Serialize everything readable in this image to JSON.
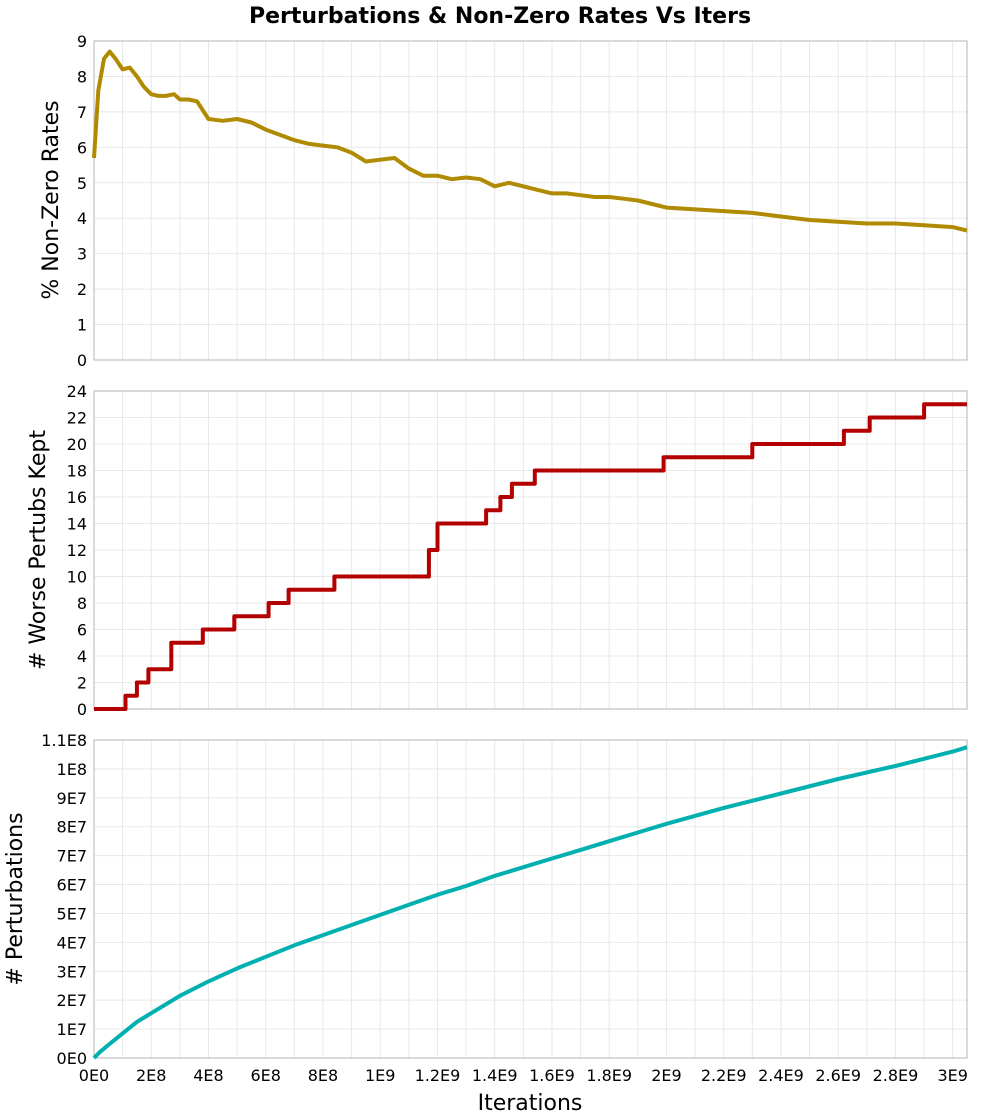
{
  "title": "Perturbations & Non-Zero Rates Vs Iters",
  "xlabel": "Iterations",
  "colors": {
    "top": "#b08a00",
    "middle": "#b30000",
    "bottom": "#00b0b0",
    "grid": "#e8e8e8",
    "frame": "#b5b5b5"
  },
  "chart_data": [
    {
      "type": "line",
      "ylabel": "% Non-Zero Rates",
      "xlim": [
        0,
        3050000000
      ],
      "ylim": [
        0,
        9
      ],
      "yticks": [
        "0",
        "1",
        "2",
        "3",
        "4",
        "5",
        "6",
        "7",
        "8",
        "9"
      ],
      "grid": true,
      "series": [
        {
          "color": "#b08a00",
          "x": [
            0,
            15000000.0,
            35000000.0,
            55000000.0,
            75000000.0,
            100000000.0,
            125000000.0,
            150000000.0,
            175000000.0,
            200000000.0,
            225000000.0,
            250000000.0,
            280000000.0,
            300000000.0,
            330000000.0,
            360000000.0,
            400000000.0,
            450000000.0,
            500000000.0,
            550000000.0,
            600000000.0,
            650000000.0,
            700000000.0,
            750000000.0,
            800000000.0,
            850000000.0,
            900000000.0,
            950000000.0,
            1000000000.0,
            1050000000.0,
            1100000000.0,
            1150000000.0,
            1200000000.0,
            1250000000.0,
            1300000000.0,
            1350000000.0,
            1400000000.0,
            1450000000.0,
            1500000000.0,
            1550000000.0,
            1600000000.0,
            1650000000.0,
            1700000000.0,
            1750000000.0,
            1800000000.0,
            1850000000.0,
            1900000000.0,
            1950000000.0,
            2000000000.0,
            2100000000.0,
            2200000000.0,
            2300000000.0,
            2400000000.0,
            2500000000.0,
            2600000000.0,
            2700000000.0,
            2800000000.0,
            2900000000.0,
            3000000000.0,
            3050000000.0
          ],
          "y": [
            5.7,
            7.6,
            8.5,
            8.7,
            8.5,
            8.2,
            8.25,
            8.0,
            7.7,
            7.5,
            7.45,
            7.45,
            7.5,
            7.35,
            7.35,
            7.3,
            6.8,
            6.75,
            6.8,
            6.7,
            6.5,
            6.35,
            6.2,
            6.1,
            6.05,
            6.0,
            5.85,
            5.6,
            5.65,
            5.7,
            5.4,
            5.2,
            5.2,
            5.1,
            5.15,
            5.1,
            4.9,
            5.0,
            4.9,
            4.8,
            4.7,
            4.7,
            4.65,
            4.6,
            4.6,
            4.55,
            4.5,
            4.4,
            4.3,
            4.25,
            4.2,
            4.15,
            4.05,
            3.95,
            3.9,
            3.85,
            3.85,
            3.8,
            3.75,
            3.65
          ]
        }
      ]
    },
    {
      "type": "line",
      "ylabel": "# Worse Pertubs Kept",
      "xlim": [
        0,
        3050000000
      ],
      "ylim": [
        0,
        24
      ],
      "yticks": [
        "0",
        "2",
        "4",
        "6",
        "8",
        "10",
        "12",
        "14",
        "16",
        "18",
        "20",
        "22",
        "24"
      ],
      "grid": true,
      "series": [
        {
          "color": "#b30000",
          "step": true,
          "x": [
            0,
            110000000.0,
            150000000.0,
            190000000.0,
            270000000.0,
            380000000.0,
            490000000.0,
            610000000.0,
            680000000.0,
            840000000.0,
            1170000000.0,
            1200000000.0,
            1370000000.0,
            1420000000.0,
            1460000000.0,
            1540000000.0,
            1990000000.0,
            2300000000.0,
            2620000000.0,
            2710000000.0,
            2900000000.0,
            3050000000.0
          ],
          "y": [
            0,
            1,
            2,
            3,
            5,
            6,
            7,
            8,
            9,
            10,
            12,
            14,
            15,
            16,
            17,
            18,
            19,
            20,
            21,
            22,
            23,
            23
          ]
        }
      ]
    },
    {
      "type": "line",
      "ylabel": "# Perturbations",
      "xlabel": "Iterations",
      "xlim": [
        0,
        3050000000
      ],
      "ylim": [
        0,
        110000000
      ],
      "yticks": [
        "0E0",
        "1E7",
        "2E7",
        "3E7",
        "4E7",
        "5E7",
        "6E7",
        "7E7",
        "8E7",
        "9E7",
        "1E8",
        "1.1E8"
      ],
      "xticks": [
        "0E0",
        "2E8",
        "4E8",
        "6E8",
        "8E8",
        "1E9",
        "1.2E9",
        "1.4E9",
        "1.6E9",
        "1.8E9",
        "2E9",
        "2.2E9",
        "2.4E9",
        "2.6E9",
        "2.8E9",
        "3E9"
      ],
      "grid": true,
      "series": [
        {
          "color": "#00b0b0",
          "x": [
            0,
            20000000.0,
            50000000.0,
            100000000.0,
            150000000.0,
            200000000.0,
            250000000.0,
            300000000.0,
            400000000.0,
            500000000.0,
            600000000.0,
            700000000.0,
            800000000.0,
            900000000.0,
            1000000000.0,
            1100000000.0,
            1200000000.0,
            1300000000.0,
            1400000000.0,
            1500000000.0,
            1600000000.0,
            1700000000.0,
            1800000000.0,
            1900000000.0,
            2000000000.0,
            2200000000.0,
            2400000000.0,
            2600000000.0,
            2800000000.0,
            3000000000.0,
            3050000000.0
          ],
          "y": [
            0,
            2000000,
            4500000,
            8500000,
            12500000,
            15500000,
            18500000,
            21500000,
            26500000,
            31000000,
            35000000,
            39000000,
            42500000,
            46000000,
            49500000,
            53000000,
            56500000,
            59500000,
            63000000,
            66000000,
            69000000,
            72000000,
            75000000,
            78000000,
            81000000,
            86500000,
            91500000,
            96500000,
            101000000,
            106000000,
            107500000
          ]
        }
      ]
    }
  ]
}
